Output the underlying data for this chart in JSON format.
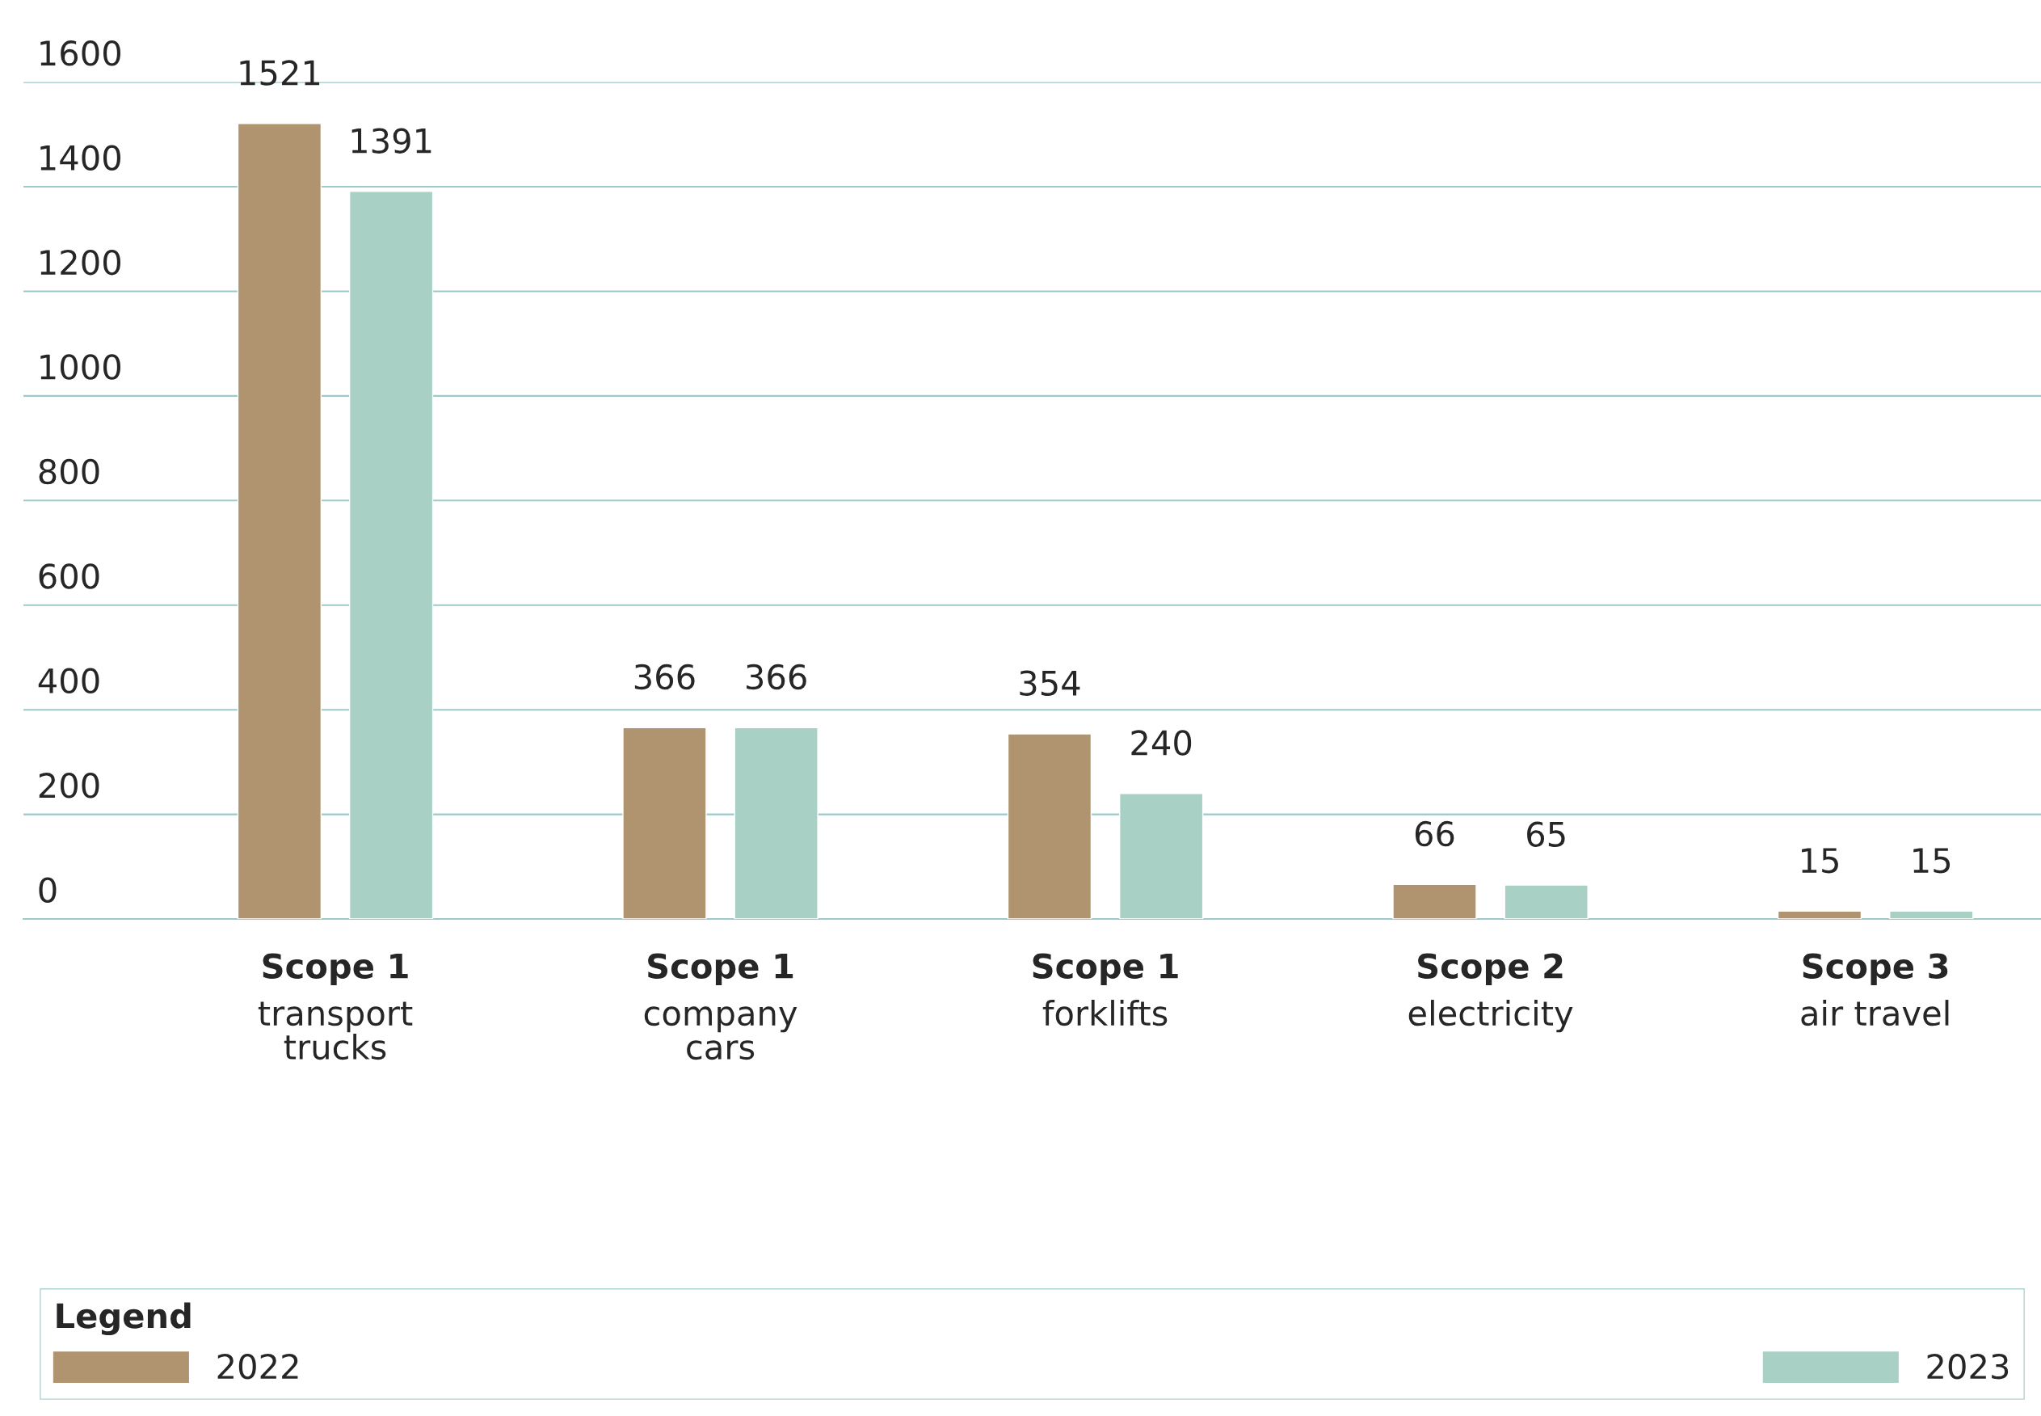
{
  "chart_data": {
    "type": "bar",
    "categories": [
      "Scope 1\ntransport\ntrucks",
      "Scope 1\ncompany\ncars",
      "Scope 1\nforklifts",
      "Scope 2\nelectricity",
      "Scope 3\nair travel"
    ],
    "series": [
      {
        "name": "2022",
        "color": "#b09470",
        "values": [
          1521,
          366,
          354,
          66,
          15
        ]
      },
      {
        "name": "2023",
        "color": "#a8d0c4",
        "values": [
          1391,
          366,
          240,
          65,
          15
        ]
      }
    ],
    "ylim": [
      0,
      1600
    ],
    "yticks": [
      0,
      200,
      400,
      600,
      800,
      1000,
      1200,
      1400,
      1600
    ],
    "grid": "y",
    "data_labels": true,
    "legend": "bottom",
    "legend_title": "Legend"
  }
}
